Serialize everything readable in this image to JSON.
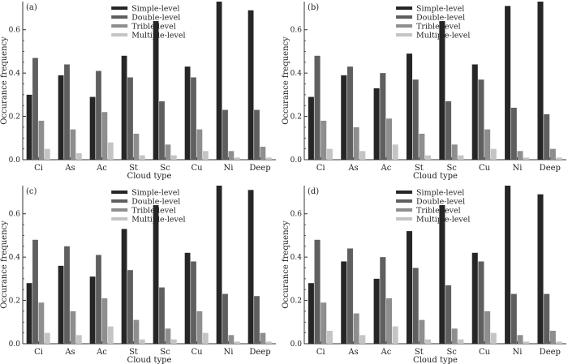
{
  "figure": {
    "colors": {
      "Simple-level": "#262626",
      "Double-level": "#5f5f5f",
      "Trible-level": "#8e8e8e",
      "Multiple-level": "#c4c4c4",
      "axis": "#333333"
    },
    "legend_position": "top-center"
  },
  "chart_data": [
    {
      "panel_label": "(a)",
      "type": "bar",
      "categories": [
        "Ci",
        "As",
        "Ac",
        "St",
        "Sc",
        "Cu",
        "Ni",
        "Deep"
      ],
      "series": [
        {
          "name": "Simple-level",
          "values": [
            0.3,
            0.39,
            0.29,
            0.48,
            0.64,
            0.43,
            0.73,
            0.69
          ]
        },
        {
          "name": "Double-level",
          "values": [
            0.47,
            0.44,
            0.41,
            0.38,
            0.27,
            0.38,
            0.23,
            0.23
          ]
        },
        {
          "name": "Trible-level",
          "values": [
            0.18,
            0.14,
            0.22,
            0.12,
            0.07,
            0.14,
            0.04,
            0.06
          ]
        },
        {
          "name": "Multiple-level",
          "values": [
            0.05,
            0.03,
            0.08,
            0.02,
            0.02,
            0.04,
            0.01,
            0.01
          ]
        }
      ],
      "xlabel": "Cloud  type",
      "ylabel": "Occurance  frequency",
      "ylim": [
        0,
        0.73
      ],
      "yticks": [
        0.0,
        0.2,
        0.4,
        0.6
      ],
      "ytick_labels": [
        "0.0",
        "0.2",
        "0.4",
        "0.6"
      ],
      "grid": false,
      "legend": "top-center"
    },
    {
      "panel_label": "(b)",
      "type": "bar",
      "categories": [
        "Ci",
        "As",
        "Ac",
        "St",
        "Sc",
        "Cu",
        "Ni",
        "Deep"
      ],
      "series": [
        {
          "name": "Simple-level",
          "values": [
            0.29,
            0.39,
            0.33,
            0.49,
            0.64,
            0.44,
            0.71,
            0.74
          ]
        },
        {
          "name": "Double-level",
          "values": [
            0.48,
            0.43,
            0.4,
            0.37,
            0.27,
            0.37,
            0.24,
            0.21
          ]
        },
        {
          "name": "Trible-level",
          "values": [
            0.18,
            0.15,
            0.19,
            0.12,
            0.07,
            0.14,
            0.04,
            0.05
          ]
        },
        {
          "name": "Multiple-level",
          "values": [
            0.05,
            0.04,
            0.07,
            0.02,
            0.02,
            0.05,
            0.01,
            0.01
          ]
        }
      ],
      "xlabel": "Cloud  type",
      "ylabel": "Occurance  frequency",
      "ylim": [
        0,
        0.73
      ],
      "yticks": [
        0.0,
        0.2,
        0.4,
        0.6
      ],
      "ytick_labels": [
        "0.0",
        "0.2",
        "0.4",
        "0.6"
      ],
      "grid": false,
      "legend": "top-center"
    },
    {
      "panel_label": "(c)",
      "type": "bar",
      "categories": [
        "Ci",
        "As",
        "Ac",
        "St",
        "Sc",
        "Cu",
        "Ni",
        "Deep"
      ],
      "series": [
        {
          "name": "Simple-level",
          "values": [
            0.28,
            0.36,
            0.31,
            0.53,
            0.64,
            0.42,
            0.73,
            0.71
          ]
        },
        {
          "name": "Double-level",
          "values": [
            0.48,
            0.45,
            0.41,
            0.34,
            0.26,
            0.38,
            0.23,
            0.22
          ]
        },
        {
          "name": "Trible-level",
          "values": [
            0.19,
            0.15,
            0.21,
            0.11,
            0.07,
            0.15,
            0.04,
            0.05
          ]
        },
        {
          "name": "Multiple-level",
          "values": [
            0.05,
            0.04,
            0.08,
            0.02,
            0.02,
            0.05,
            0.01,
            0.01
          ]
        }
      ],
      "xlabel": "Cloud  type",
      "ylabel": "Occurance  frequency",
      "ylim": [
        0,
        0.73
      ],
      "yticks": [
        0.0,
        0.2,
        0.4,
        0.6
      ],
      "ytick_labels": [
        "0.0",
        "0.2",
        "0.4",
        "0.6"
      ],
      "grid": false,
      "legend": "top-center"
    },
    {
      "panel_label": "(d)",
      "type": "bar",
      "categories": [
        "Ci",
        "As",
        "Ac",
        "St",
        "Sc",
        "Cu",
        "Ni",
        "Deep"
      ],
      "series": [
        {
          "name": "Simple-level",
          "values": [
            0.28,
            0.38,
            0.3,
            0.52,
            0.64,
            0.42,
            0.73,
            0.69
          ]
        },
        {
          "name": "Double-level",
          "values": [
            0.48,
            0.44,
            0.4,
            0.35,
            0.27,
            0.38,
            0.23,
            0.23
          ]
        },
        {
          "name": "Trible-level",
          "values": [
            0.19,
            0.14,
            0.21,
            0.11,
            0.07,
            0.15,
            0.04,
            0.06
          ]
        },
        {
          "name": "Multiple-level",
          "values": [
            0.06,
            0.04,
            0.08,
            0.02,
            0.02,
            0.05,
            0.01,
            0.01
          ]
        }
      ],
      "xlabel": "Cloud  type",
      "ylabel": "Occurance  frequency",
      "ylim": [
        0,
        0.73
      ],
      "yticks": [
        0.0,
        0.2,
        0.4,
        0.6
      ],
      "ytick_labels": [
        "0.0",
        "0.2",
        "0.4",
        "0.6"
      ],
      "grid": false,
      "legend": "top-center"
    }
  ]
}
